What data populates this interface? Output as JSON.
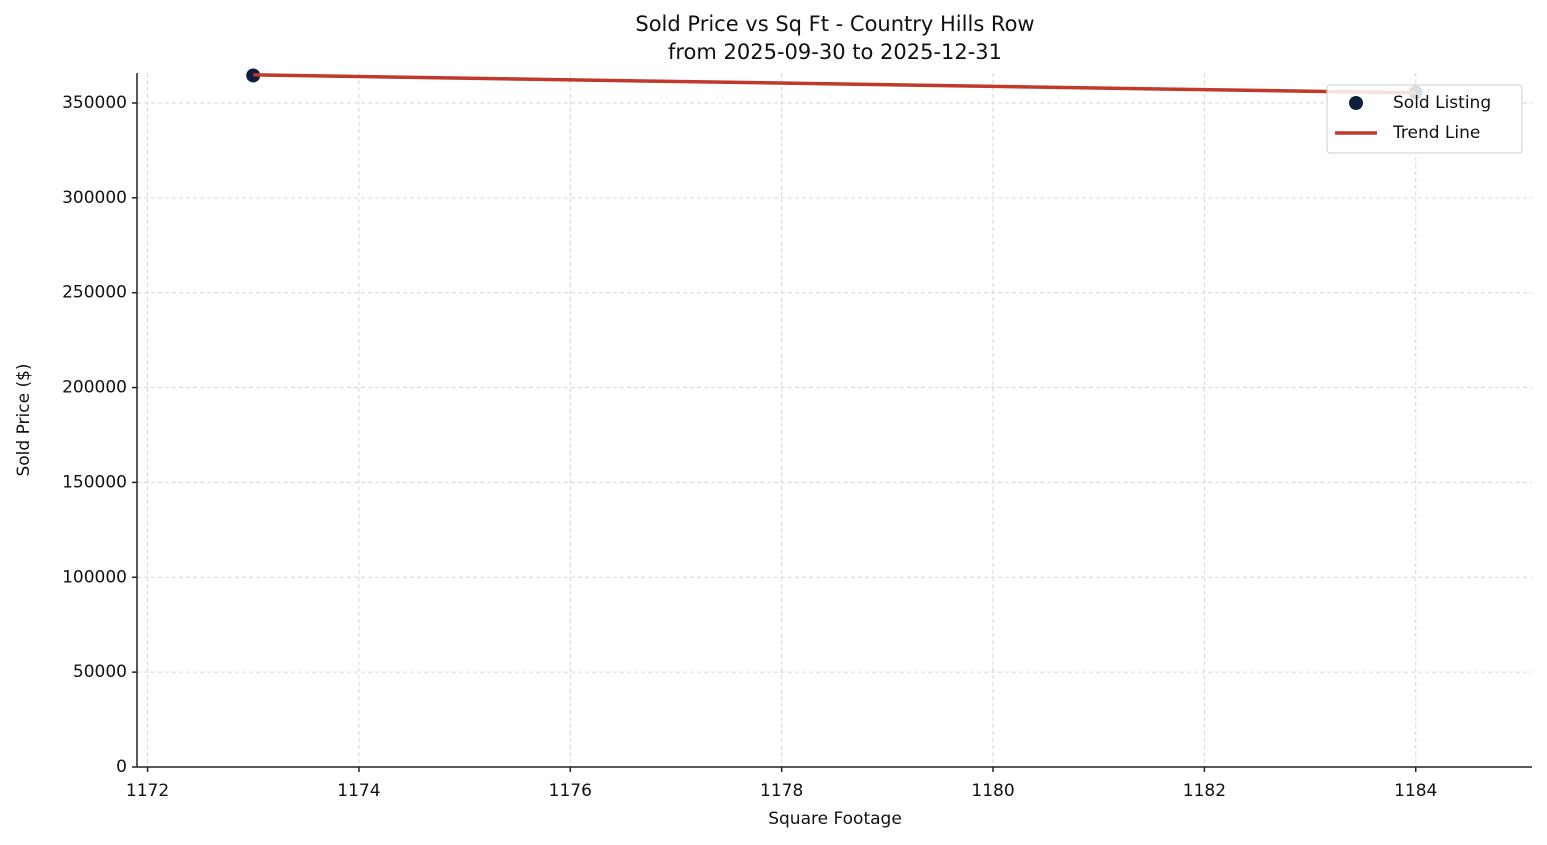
{
  "chart_data": {
    "type": "scatter",
    "title": "Sold Price vs Sq Ft - Country Hills Row",
    "subtitle": "from 2025-09-30 to 2025-12-31",
    "x_label": "Square Footage",
    "y_label": "Sold Price ($)",
    "series": [
      {
        "name": "Sold Listing",
        "type": "scatter",
        "color": "#0d1f3c",
        "x": [
          1173,
          1184
        ],
        "values": [
          364500,
          355500
        ]
      },
      {
        "name": "Trend Line",
        "type": "line",
        "color": "#c0392b",
        "x": [
          1173,
          1184
        ],
        "values": [
          364800,
          355300
        ]
      }
    ],
    "xlim": [
      1171.9,
      1185.1
    ],
    "ylim": [
      0,
      365800
    ],
    "xticks": [
      1172,
      1174,
      1176,
      1178,
      1180,
      1182,
      1184
    ],
    "yticks": [
      0,
      50000,
      100000,
      150000,
      200000,
      250000,
      300000,
      350000
    ],
    "grid": true,
    "legend": "upper right"
  }
}
